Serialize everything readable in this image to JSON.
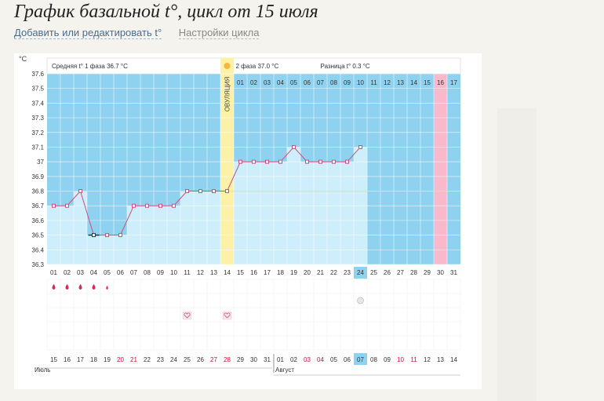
{
  "header": {
    "title": "График базальной t°, цикл от 15 июля",
    "link_edit": "Добавить или редактировать t°",
    "link_settings": "Настройки цикла"
  },
  "chart_data": {
    "type": "line",
    "unit": "°C",
    "ylim": [
      36.3,
      37.6
    ],
    "yticks": [
      "37.6",
      "37.5",
      "37.4",
      "37.3",
      "37.2",
      "37.1",
      "37",
      "36.9",
      "36.8",
      "36.7",
      "36.6",
      "36.5",
      "36.4",
      "36.3"
    ],
    "x": [
      "01",
      "02",
      "03",
      "04",
      "05",
      "06",
      "07",
      "08",
      "09",
      "10",
      "11",
      "12",
      "13",
      "14",
      "15",
      "16",
      "17",
      "18",
      "19",
      "20",
      "21",
      "22",
      "23",
      "24",
      "25",
      "26",
      "27",
      "28",
      "29",
      "30",
      "31"
    ],
    "values": [
      36.7,
      36.7,
      36.8,
      36.5,
      36.5,
      36.5,
      36.7,
      36.7,
      36.7,
      36.7,
      36.8,
      36.8,
      36.8,
      36.8,
      37.0,
      37.0,
      37.0,
      37.0,
      37.1,
      37.0,
      37.0,
      37.0,
      37.0,
      37.1,
      null,
      null,
      null,
      null,
      null,
      null,
      null
    ],
    "coverline": 36.8,
    "ovulation_day": 14,
    "ovulation_label": "ОВУЛЯЦИЯ",
    "phase1_summary": "Средняя t° 1 фаза",
    "phase1_avg": "36.7 °C",
    "phase2_summary": "2 фаза",
    "phase2_avg": "37.0 °C",
    "difference_label": "Разница t°",
    "difference_value": "0.3 °C",
    "phase2_days": [
      "01",
      "02",
      "03",
      "04",
      "05",
      "06",
      "07",
      "08",
      "09",
      "10",
      "11",
      "12",
      "13",
      "14",
      "15",
      "16",
      "17"
    ],
    "highlight_phase2_day": 16,
    "today_day": 24,
    "marked_day": 4,
    "calendar_dates": [
      "15",
      "16",
      "17",
      "18",
      "19",
      "20",
      "21",
      "22",
      "23",
      "24",
      "25",
      "26",
      "27",
      "28",
      "29",
      "30",
      "31",
      "01",
      "02",
      "03",
      "04",
      "05",
      "06",
      "07",
      "08",
      "09",
      "10",
      "11",
      "12",
      "13",
      "14"
    ],
    "weekend_dates_indices": [
      5,
      6,
      12,
      13,
      19,
      20,
      26,
      27
    ],
    "today_date_index": 23,
    "month_1": "Июль",
    "month_2": "Август",
    "month_2_start_index": 17,
    "symptom_drops": [
      1,
      2,
      3,
      4,
      5
    ],
    "symptom_hearts": [
      11,
      14
    ],
    "symptom_note_day": 24,
    "colors": {
      "phase_bg": "#8fd2ef",
      "column_fill": "#cfeefb",
      "ovulation": "#fdf1a8",
      "line": "#d14d7c",
      "coverline": "#f3e56a",
      "highlight": "#f7b9cb",
      "today": "#8fd2ef",
      "weekend_text": "#d0102e"
    }
  }
}
